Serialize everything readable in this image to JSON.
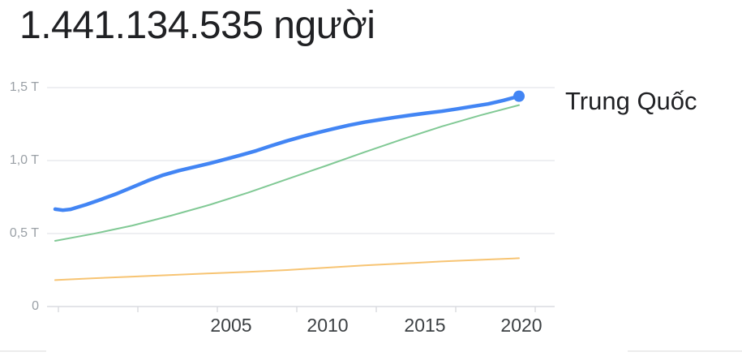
{
  "header": {
    "title": "1.441.134.535 người"
  },
  "legend": {
    "label": "Trung Quốc"
  },
  "colors": {
    "highlight_blue": "#4285f4",
    "green_line": "#81c995",
    "orange_line": "#f7c473",
    "gridline": "#e8eaed",
    "axis_baseline": "#dadce0",
    "tick": "#dadce0",
    "y_label_gray": "#9aa0a6",
    "x_label_dark": "#3c4043",
    "title_text": "#202124"
  },
  "chart_data": {
    "type": "line",
    "title": "1.441.134.535 người",
    "ylabel": "",
    "xlabel": "",
    "y_tick_labels": [
      "1,5 T",
      "1,0 T",
      "0,5 T",
      "0"
    ],
    "y_tick_values": [
      1.5,
      1.0,
      0.5,
      0
    ],
    "x_tick_labels": [
      "2005",
      "2010",
      "2015",
      "2020"
    ],
    "ylim": [
      0,
      1.5
    ],
    "x_years_range": [
      1960,
      2020
    ],
    "grid": "horizontal gridlines only",
    "legend_position": "right of line end",
    "legend_entries": [
      "Trung Quốc"
    ],
    "series": [
      {
        "id": "china",
        "label": "Trung Quốc",
        "color": "#4285f4",
        "emphasis": true,
        "end_dot": true,
        "end_value_label": "1.441.134.535",
        "points": [
          [
            1960,
            0.667
          ],
          [
            1961,
            0.66
          ],
          [
            1962,
            0.666
          ],
          [
            1964,
            0.698
          ],
          [
            1966,
            0.735
          ],
          [
            1968,
            0.774
          ],
          [
            1970,
            0.818
          ],
          [
            1972,
            0.862
          ],
          [
            1974,
            0.901
          ],
          [
            1976,
            0.931
          ],
          [
            1978,
            0.956
          ],
          [
            1980,
            0.981
          ],
          [
            1982,
            1.009
          ],
          [
            1984,
            1.037
          ],
          [
            1986,
            1.067
          ],
          [
            1988,
            1.102
          ],
          [
            1990,
            1.135
          ],
          [
            1992,
            1.165
          ],
          [
            1994,
            1.192
          ],
          [
            1996,
            1.218
          ],
          [
            1998,
            1.242
          ],
          [
            2000,
            1.263
          ],
          [
            2002,
            1.28
          ],
          [
            2004,
            1.296
          ],
          [
            2006,
            1.311
          ],
          [
            2008,
            1.325
          ],
          [
            2010,
            1.338
          ],
          [
            2012,
            1.354
          ],
          [
            2014,
            1.371
          ],
          [
            2016,
            1.388
          ],
          [
            2018,
            1.412
          ],
          [
            2020,
            1.441
          ]
        ]
      },
      {
        "id": "unlabeled-green",
        "label": "",
        "color": "#81c995",
        "emphasis": false,
        "end_dot": false,
        "points": [
          [
            1960,
            0.45
          ],
          [
            1965,
            0.499
          ],
          [
            1970,
            0.555
          ],
          [
            1975,
            0.623
          ],
          [
            1980,
            0.697
          ],
          [
            1985,
            0.781
          ],
          [
            1990,
            0.873
          ],
          [
            1995,
            0.964
          ],
          [
            2000,
            1.057
          ],
          [
            2005,
            1.148
          ],
          [
            2010,
            1.234
          ],
          [
            2015,
            1.31
          ],
          [
            2020,
            1.38
          ]
        ]
      },
      {
        "id": "unlabeled-orange",
        "label": "",
        "color": "#f7c473",
        "emphasis": false,
        "end_dot": false,
        "points": [
          [
            1960,
            0.181
          ],
          [
            1965,
            0.194
          ],
          [
            1970,
            0.205
          ],
          [
            1975,
            0.216
          ],
          [
            1980,
            0.227
          ],
          [
            1985,
            0.238
          ],
          [
            1990,
            0.25
          ],
          [
            1995,
            0.266
          ],
          [
            2000,
            0.282
          ],
          [
            2005,
            0.295
          ],
          [
            2010,
            0.309
          ],
          [
            2015,
            0.32
          ],
          [
            2020,
            0.331
          ]
        ]
      }
    ]
  }
}
